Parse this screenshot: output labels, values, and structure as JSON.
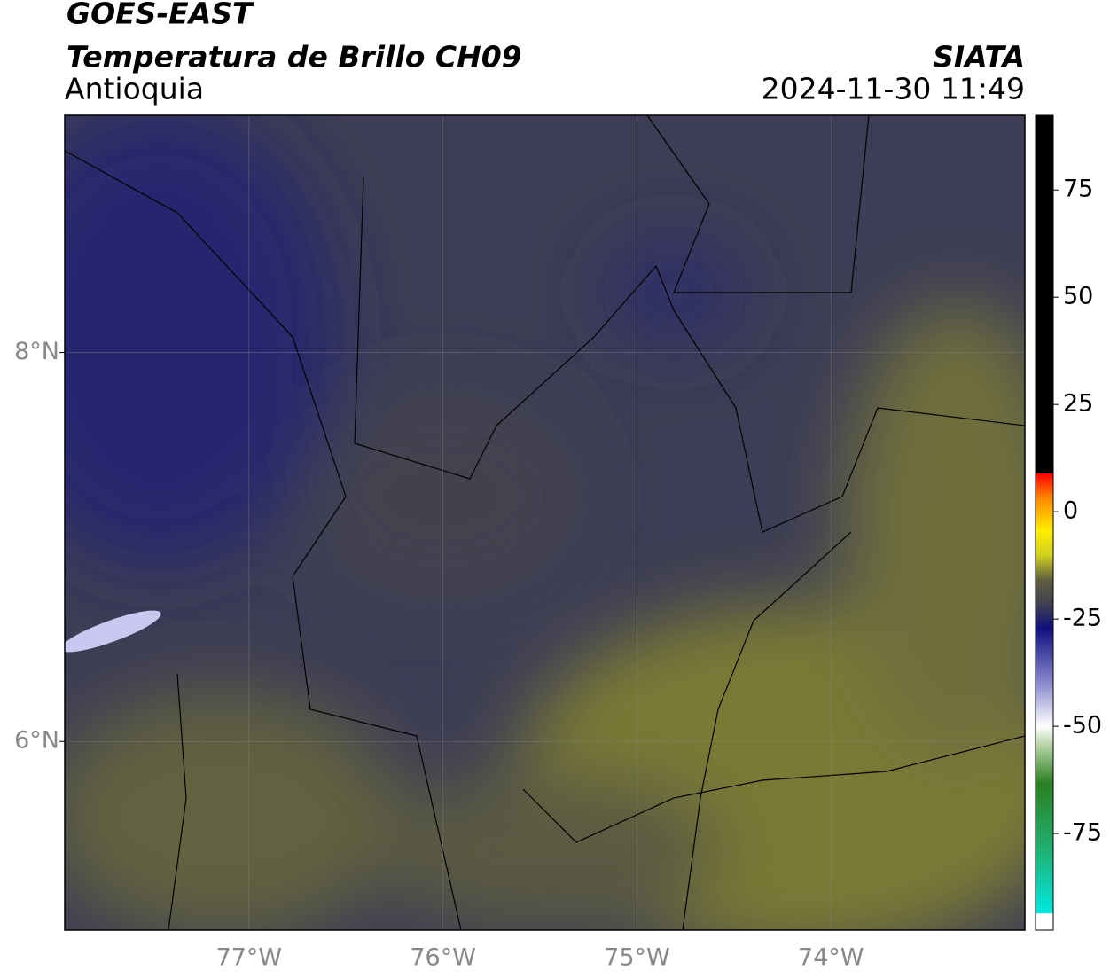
{
  "header": {
    "title": "GOES-EAST",
    "subtitle": "Temperatura de Brillo CH09",
    "region": "Antioquia",
    "source": "SIATA",
    "datetime": "2024-11-30 11:49"
  },
  "map": {
    "type": "map",
    "xlim": [
      -77.95,
      -73.0
    ],
    "ylim": [
      5.03,
      9.22
    ],
    "xticks": [
      {
        "value": -77,
        "label": "77°W"
      },
      {
        "value": -76,
        "label": "76°W"
      },
      {
        "value": -75,
        "label": "75°W"
      },
      {
        "value": -74,
        "label": "74°W"
      }
    ],
    "yticks": [
      {
        "value": 6,
        "label": "6°N"
      },
      {
        "value": 8,
        "label": "8°N"
      }
    ],
    "grid": true
  },
  "colorbar": {
    "clim": [
      -97.5,
      92.4
    ],
    "ticks": [
      75,
      50,
      25,
      0,
      -25,
      -50,
      -75
    ]
  }
}
